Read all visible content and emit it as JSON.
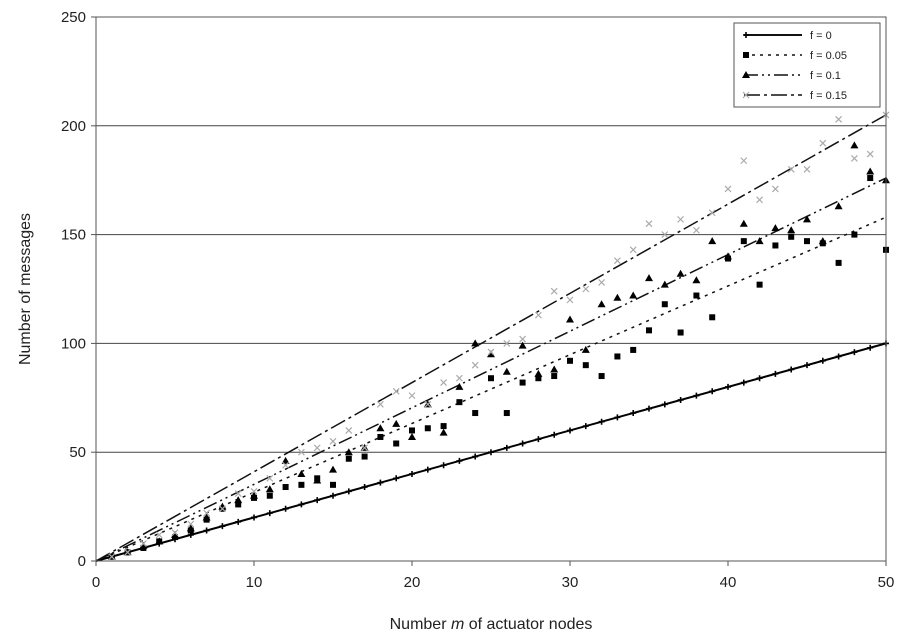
{
  "chart_data": {
    "type": "scatter",
    "xlabel_parts": [
      "Number ",
      "m",
      " of actuator nodes"
    ],
    "ylabel": "Number of messages",
    "xlim": [
      0,
      50
    ],
    "ylim": [
      0,
      250
    ],
    "xticks": [
      0,
      10,
      20,
      30,
      40,
      50
    ],
    "yticks": [
      0,
      50,
      100,
      150,
      200,
      250
    ],
    "grid": "horizontal",
    "legend_position": "top-right",
    "series": [
      {
        "name": "f = 0",
        "marker": "plus",
        "line_style": "solid",
        "color": "#000000",
        "trend": [
          [
            0,
            0
          ],
          [
            50,
            100
          ]
        ],
        "points": [
          [
            1,
            2
          ],
          [
            2,
            4
          ],
          [
            3,
            6
          ],
          [
            4,
            8
          ],
          [
            5,
            10
          ],
          [
            6,
            12
          ],
          [
            7,
            14
          ],
          [
            8,
            16
          ],
          [
            9,
            18
          ],
          [
            10,
            20
          ],
          [
            11,
            22
          ],
          [
            12,
            24
          ],
          [
            13,
            26
          ],
          [
            14,
            28
          ],
          [
            15,
            30
          ],
          [
            16,
            32
          ],
          [
            17,
            34
          ],
          [
            18,
            36
          ],
          [
            19,
            38
          ],
          [
            20,
            40
          ],
          [
            21,
            42
          ],
          [
            22,
            44
          ],
          [
            23,
            46
          ],
          [
            24,
            48
          ],
          [
            25,
            50
          ],
          [
            26,
            52
          ],
          [
            27,
            54
          ],
          [
            28,
            56
          ],
          [
            29,
            58
          ],
          [
            30,
            60
          ],
          [
            31,
            62
          ],
          [
            32,
            64
          ],
          [
            33,
            66
          ],
          [
            34,
            68
          ],
          [
            35,
            70
          ],
          [
            36,
            72
          ],
          [
            37,
            74
          ],
          [
            38,
            76
          ],
          [
            39,
            78
          ],
          [
            40,
            80
          ],
          [
            41,
            82
          ],
          [
            42,
            84
          ],
          [
            43,
            86
          ],
          [
            44,
            88
          ],
          [
            45,
            90
          ],
          [
            46,
            92
          ],
          [
            47,
            94
          ],
          [
            48,
            96
          ],
          [
            49,
            98
          ],
          [
            50,
            100
          ]
        ]
      },
      {
        "name": "f = 0.05",
        "marker": "square",
        "line_style": "dotted",
        "color": "#000000",
        "trend": [
          [
            0,
            0
          ],
          [
            50,
            158
          ]
        ],
        "points": [
          [
            1,
            2
          ],
          [
            2,
            4
          ],
          [
            3,
            6
          ],
          [
            4,
            9
          ],
          [
            5,
            11
          ],
          [
            6,
            14
          ],
          [
            7,
            19
          ],
          [
            8,
            24
          ],
          [
            9,
            26
          ],
          [
            10,
            29
          ],
          [
            11,
            30
          ],
          [
            12,
            34
          ],
          [
            13,
            35
          ],
          [
            14,
            38
          ],
          [
            15,
            35
          ],
          [
            16,
            47
          ],
          [
            17,
            48
          ],
          [
            18,
            57
          ],
          [
            19,
            54
          ],
          [
            20,
            60
          ],
          [
            21,
            61
          ],
          [
            22,
            62
          ],
          [
            23,
            73
          ],
          [
            24,
            68
          ],
          [
            25,
            84
          ],
          [
            26,
            68
          ],
          [
            27,
            82
          ],
          [
            28,
            84
          ],
          [
            29,
            85
          ],
          [
            30,
            92
          ],
          [
            31,
            90
          ],
          [
            32,
            85
          ],
          [
            33,
            94
          ],
          [
            34,
            97
          ],
          [
            35,
            106
          ],
          [
            36,
            118
          ],
          [
            37,
            105
          ],
          [
            38,
            122
          ],
          [
            39,
            112
          ],
          [
            40,
            139
          ],
          [
            41,
            147
          ],
          [
            42,
            127
          ],
          [
            43,
            145
          ],
          [
            44,
            149
          ],
          [
            45,
            147
          ],
          [
            46,
            146
          ],
          [
            47,
            137
          ],
          [
            48,
            150
          ],
          [
            49,
            176
          ],
          [
            50,
            143
          ]
        ]
      },
      {
        "name": "f = 0.1",
        "marker": "triangle",
        "line_style": "dash-dot-dot",
        "color": "#000000",
        "trend": [
          [
            0,
            0
          ],
          [
            50,
            176
          ]
        ],
        "points": [
          [
            1,
            2
          ],
          [
            2,
            4
          ],
          [
            3,
            7
          ],
          [
            4,
            9
          ],
          [
            5,
            12
          ],
          [
            6,
            15
          ],
          [
            7,
            20
          ],
          [
            8,
            25
          ],
          [
            9,
            28
          ],
          [
            10,
            30
          ],
          [
            11,
            33
          ],
          [
            12,
            46
          ],
          [
            13,
            40
          ],
          [
            14,
            37
          ],
          [
            15,
            42
          ],
          [
            16,
            50
          ],
          [
            17,
            52
          ],
          [
            18,
            61
          ],
          [
            19,
            63
          ],
          [
            20,
            57
          ],
          [
            21,
            72
          ],
          [
            22,
            59
          ],
          [
            23,
            80
          ],
          [
            24,
            100
          ],
          [
            25,
            95
          ],
          [
            26,
            87
          ],
          [
            27,
            99
          ],
          [
            28,
            86
          ],
          [
            29,
            88
          ],
          [
            30,
            111
          ],
          [
            31,
            97
          ],
          [
            32,
            118
          ],
          [
            33,
            121
          ],
          [
            34,
            122
          ],
          [
            35,
            130
          ],
          [
            36,
            127
          ],
          [
            37,
            132
          ],
          [
            38,
            129
          ],
          [
            39,
            147
          ],
          [
            40,
            140
          ],
          [
            41,
            155
          ],
          [
            42,
            147
          ],
          [
            43,
            153
          ],
          [
            44,
            152
          ],
          [
            45,
            157
          ],
          [
            46,
            147
          ],
          [
            47,
            163
          ],
          [
            48,
            191
          ],
          [
            49,
            179
          ],
          [
            50,
            175
          ]
        ]
      },
      {
        "name": "f = 0.15",
        "marker": "x",
        "line_style": "dash-dot",
        "color": "#aaaaaa",
        "trend": [
          [
            0,
            0
          ],
          [
            50,
            205
          ]
        ],
        "points": [
          [
            1,
            2
          ],
          [
            2,
            4
          ],
          [
            3,
            8
          ],
          [
            4,
            12
          ],
          [
            5,
            13
          ],
          [
            6,
            17
          ],
          [
            7,
            22
          ],
          [
            8,
            24
          ],
          [
            9,
            31
          ],
          [
            10,
            32
          ],
          [
            11,
            38
          ],
          [
            12,
            44
          ],
          [
            13,
            50
          ],
          [
            14,
            52
          ],
          [
            15,
            55
          ],
          [
            16,
            60
          ],
          [
            17,
            52
          ],
          [
            18,
            72
          ],
          [
            19,
            78
          ],
          [
            20,
            76
          ],
          [
            21,
            72
          ],
          [
            22,
            82
          ],
          [
            23,
            84
          ],
          [
            24,
            90
          ],
          [
            25,
            96
          ],
          [
            26,
            100
          ],
          [
            27,
            102
          ],
          [
            28,
            113
          ],
          [
            29,
            124
          ],
          [
            30,
            120
          ],
          [
            31,
            125
          ],
          [
            32,
            128
          ],
          [
            33,
            138
          ],
          [
            34,
            143
          ],
          [
            35,
            155
          ],
          [
            36,
            150
          ],
          [
            37,
            157
          ],
          [
            38,
            152
          ],
          [
            39,
            160
          ],
          [
            40,
            171
          ],
          [
            41,
            184
          ],
          [
            42,
            166
          ],
          [
            43,
            171
          ],
          [
            44,
            180
          ],
          [
            45,
            180
          ],
          [
            46,
            192
          ],
          [
            47,
            203
          ],
          [
            48,
            185
          ],
          [
            49,
            187
          ],
          [
            50,
            205
          ]
        ]
      }
    ]
  }
}
